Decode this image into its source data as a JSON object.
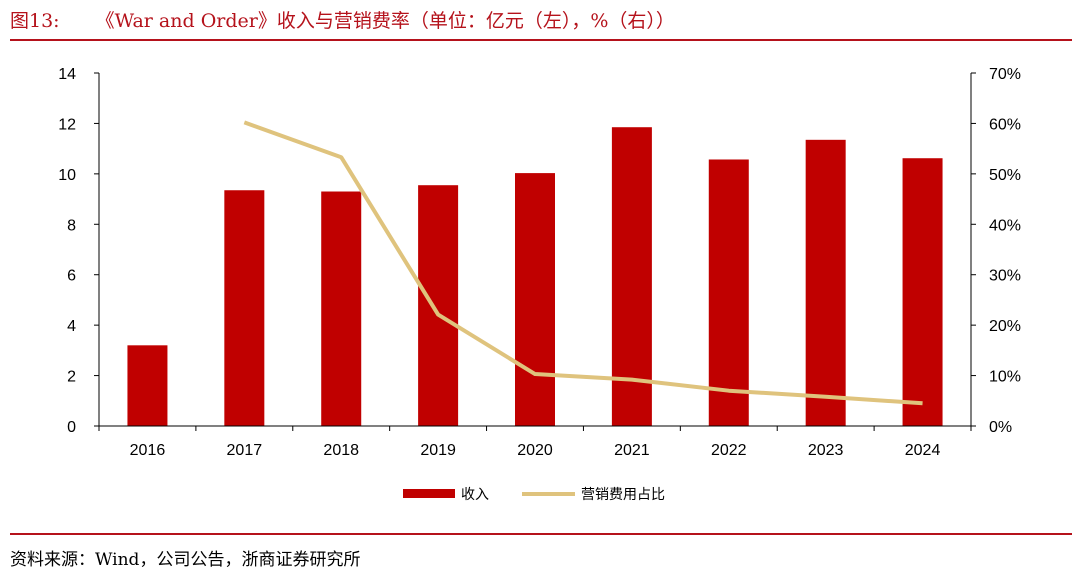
{
  "header": {
    "figure_number": "图13:",
    "title": "《War and Order》收入与营销费率（单位：亿元（左），%（右））"
  },
  "footer": {
    "source": "资料来源：Wind，公司公告，浙商证券研究所"
  },
  "colors": {
    "accent": "#b5121b",
    "bar": "#c00000",
    "line": "#dfc37d"
  },
  "chart_data": {
    "type": "bar",
    "title": "《War and Order》收入与营销费率（单位：亿元（左），%（右））",
    "categories": [
      "2016",
      "2017",
      "2018",
      "2019",
      "2020",
      "2021",
      "2022",
      "2023",
      "2024"
    ],
    "series": [
      {
        "name": "收入",
        "type": "bar",
        "axis": "left",
        "values": [
          3.2,
          9.35,
          9.3,
          9.55,
          10.03,
          11.85,
          10.57,
          11.35,
          10.62
        ]
      },
      {
        "name": "营销费用占比",
        "type": "line",
        "axis": "right",
        "values": [
          null,
          60.2,
          53.3,
          22.1,
          10.3,
          9.2,
          7.0,
          5.8,
          4.5
        ]
      }
    ],
    "y_left": {
      "min": 0,
      "max": 14,
      "ticks": [
        "0",
        "2",
        "4",
        "6",
        "8",
        "10",
        "12",
        "14"
      ]
    },
    "y_right": {
      "min": 0,
      "max": 70,
      "ticks": [
        "0%",
        "10%",
        "20%",
        "30%",
        "40%",
        "50%",
        "60%",
        "70%"
      ]
    },
    "grid": false,
    "legend_position": "bottom"
  }
}
